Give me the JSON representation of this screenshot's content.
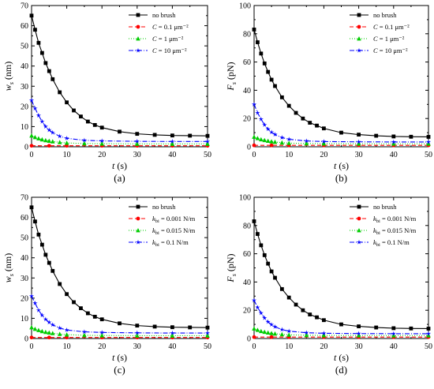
{
  "chart_data": [
    {
      "type": "line",
      "panel_label": "(a)",
      "xlabel": "t (s)",
      "ylabel_main": "w",
      "ylabel_sub": "s",
      "ylabel_unit": " (nm)",
      "xlim": [
        0,
        50
      ],
      "ylim": [
        0,
        70
      ],
      "xticks": [
        0,
        10,
        20,
        30,
        40,
        50
      ],
      "yticks": [
        0,
        10,
        20,
        30,
        40,
        50,
        60,
        70
      ],
      "legend_position": "top-right",
      "series": [
        {
          "name": "no brush",
          "legend_prefix": "",
          "legend_var": "",
          "legend_sub": "",
          "legend_value": "no brush",
          "color": "#000000",
          "dash": "",
          "marker": "square",
          "x": [
            0,
            1,
            2,
            3,
            4,
            5,
            6,
            8,
            10,
            12,
            14,
            16,
            18,
            20,
            25,
            30,
            35,
            40,
            45,
            50
          ],
          "y": [
            65,
            58,
            51.5,
            46.5,
            41.5,
            37.5,
            33.5,
            27,
            22,
            18,
            15,
            12.5,
            10.8,
            9.5,
            7.5,
            6.4,
            5.9,
            5.6,
            5.5,
            5.4
          ]
        },
        {
          "name": "C = 0.1 μm⁻²",
          "legend_prefix": "",
          "legend_var": "C",
          "legend_sub": "",
          "legend_value": " = 0.1 μm⁻²",
          "color": "#ff0000",
          "dash": "5,3",
          "marker": "circle",
          "x": [
            0,
            5,
            10,
            20,
            30,
            40,
            50
          ],
          "y": [
            0.5,
            0.5,
            0.5,
            0.5,
            0.5,
            0.5,
            0.5
          ]
        },
        {
          "name": "C = 1 μm⁻²",
          "legend_prefix": "",
          "legend_var": "C",
          "legend_sub": "",
          "legend_value": " = 1 μm⁻²",
          "color": "#00cc00",
          "dash": "1,2",
          "marker": "triangle",
          "x": [
            0,
            1,
            2,
            3,
            4,
            5,
            6,
            8,
            10,
            15,
            20,
            30,
            40,
            50
          ],
          "y": [
            5.5,
            4.7,
            4.1,
            3.6,
            3.2,
            2.9,
            2.6,
            2.2,
            1.9,
            1.6,
            1.5,
            1.4,
            1.4,
            1.4
          ]
        },
        {
          "name": "C = 10 μm⁻²",
          "legend_prefix": "",
          "legend_var": "C",
          "legend_sub": "",
          "legend_value": " = 10 μm⁻²",
          "color": "#0000ff",
          "dash": "6,2,1,2",
          "marker": "star",
          "x": [
            0,
            1,
            2,
            3,
            4,
            5,
            6,
            8,
            10,
            15,
            20,
            30,
            40,
            50
          ],
          "y": [
            23,
            19,
            15.5,
            12.5,
            10,
            8.3,
            7,
            5.2,
            4.2,
            3.2,
            2.9,
            2.7,
            2.6,
            2.6
          ]
        }
      ]
    },
    {
      "type": "line",
      "panel_label": "(b)",
      "xlabel": "t (s)",
      "ylabel_main": "F",
      "ylabel_sub": "s",
      "ylabel_unit": " (pN)",
      "xlim": [
        0,
        50
      ],
      "ylim": [
        0,
        100
      ],
      "xticks": [
        0,
        10,
        20,
        30,
        40,
        50
      ],
      "yticks": [
        0,
        20,
        40,
        60,
        80,
        100
      ],
      "legend_position": "top-right",
      "series": [
        {
          "name": "no brush",
          "legend_prefix": "",
          "legend_var": "",
          "legend_sub": "",
          "legend_value": "no brush",
          "color": "#000000",
          "dash": "",
          "marker": "square",
          "x": [
            0,
            1,
            2,
            3,
            4,
            5,
            6,
            8,
            10,
            12,
            14,
            16,
            18,
            20,
            25,
            30,
            35,
            40,
            45,
            50
          ],
          "y": [
            83,
            74,
            66,
            59,
            53,
            47.5,
            43,
            35,
            29,
            24,
            20,
            17,
            15,
            13,
            10,
            8.6,
            7.8,
            7.3,
            7.1,
            7
          ]
        },
        {
          "name": "C = 0.1 μm⁻²",
          "legend_prefix": "",
          "legend_var": "C",
          "legend_sub": "",
          "legend_value": " = 0.1 μm⁻²",
          "color": "#ff0000",
          "dash": "5,3",
          "marker": "circle",
          "x": [
            0,
            5,
            10,
            20,
            30,
            40,
            50
          ],
          "y": [
            1,
            1,
            1,
            1,
            1,
            1,
            1
          ]
        },
        {
          "name": "C = 1 μm⁻²",
          "legend_prefix": "",
          "legend_var": "C",
          "legend_sub": "",
          "legend_value": " = 1 μm⁻²",
          "color": "#00cc00",
          "dash": "1,2",
          "marker": "triangle",
          "x": [
            0,
            1,
            2,
            3,
            4,
            5,
            6,
            8,
            10,
            15,
            20,
            30,
            40,
            50
          ],
          "y": [
            7,
            6,
            5.2,
            4.6,
            4.1,
            3.7,
            3.4,
            2.9,
            2.6,
            2.3,
            2.2,
            2.1,
            2.1,
            2.1
          ]
        },
        {
          "name": "C = 10 μm⁻²",
          "legend_prefix": "",
          "legend_var": "C",
          "legend_sub": "",
          "legend_value": " = 10 μm⁻²",
          "color": "#0000ff",
          "dash": "6,2,1,2",
          "marker": "star",
          "x": [
            0,
            1,
            2,
            3,
            4,
            5,
            6,
            8,
            10,
            15,
            20,
            30,
            40,
            50
          ],
          "y": [
            30,
            24,
            19.5,
            15.5,
            12.5,
            10.3,
            8.7,
            6.5,
            5.3,
            4.1,
            3.7,
            3.5,
            3.4,
            3.4
          ]
        }
      ]
    },
    {
      "type": "line",
      "panel_label": "(c)",
      "xlabel": "t (s)",
      "ylabel_main": "w",
      "ylabel_sub": "s",
      "ylabel_unit": " (nm)",
      "xlim": [
        0,
        50
      ],
      "ylim": [
        0,
        70
      ],
      "xticks": [
        0,
        10,
        20,
        30,
        40,
        50
      ],
      "yticks": [
        0,
        10,
        20,
        30,
        40,
        50,
        60,
        70
      ],
      "legend_position": "top-right",
      "series": [
        {
          "name": "no brush",
          "legend_prefix": "",
          "legend_var": "",
          "legend_sub": "",
          "legend_value": "no brush",
          "color": "#000000",
          "dash": "",
          "marker": "square",
          "x": [
            0,
            1,
            2,
            3,
            4,
            5,
            6,
            8,
            10,
            12,
            14,
            16,
            18,
            20,
            25,
            30,
            35,
            40,
            45,
            50
          ],
          "y": [
            65,
            58,
            51.5,
            46.5,
            41.5,
            37.5,
            33.5,
            27,
            22,
            18,
            15,
            12.5,
            10.8,
            9.5,
            7.5,
            6.4,
            5.9,
            5.6,
            5.5,
            5.4
          ]
        },
        {
          "name": "kbi = 0.001 N/m",
          "legend_prefix": "",
          "legend_var": "k",
          "legend_sub": "bi",
          "legend_value": " = 0.001 N/m",
          "color": "#ff0000",
          "dash": "5,3",
          "marker": "circle",
          "x": [
            0,
            5,
            10,
            20,
            30,
            40,
            50
          ],
          "y": [
            0.5,
            0.5,
            0.5,
            0.5,
            0.5,
            0.5,
            0.5
          ]
        },
        {
          "name": "kbi = 0.015 N/m",
          "legend_prefix": "",
          "legend_var": "k",
          "legend_sub": "bi",
          "legend_value": " = 0.015 N/m",
          "color": "#00cc00",
          "dash": "1,2",
          "marker": "triangle",
          "x": [
            0,
            1,
            2,
            3,
            4,
            5,
            6,
            8,
            10,
            15,
            20,
            30,
            40,
            50
          ],
          "y": [
            5.5,
            4.7,
            4.1,
            3.6,
            3.2,
            2.9,
            2.6,
            2.2,
            1.9,
            1.6,
            1.5,
            1.4,
            1.4,
            1.4
          ]
        },
        {
          "name": "kbi = 0.1 N/m",
          "legend_prefix": "",
          "legend_var": "k",
          "legend_sub": "bi",
          "legend_value": " = 0.1 N/m",
          "color": "#0000ff",
          "dash": "6,2,1,2",
          "marker": "star",
          "x": [
            0,
            1,
            2,
            3,
            4,
            5,
            6,
            8,
            10,
            15,
            20,
            30,
            40,
            50
          ],
          "y": [
            21,
            17.5,
            14,
            11.5,
            9.5,
            8,
            6.8,
            5.2,
            4.2,
            3.3,
            3,
            2.8,
            2.7,
            2.7
          ]
        }
      ]
    },
    {
      "type": "line",
      "panel_label": "(d)",
      "xlabel": "t (s)",
      "ylabel_main": "F",
      "ylabel_sub": "s",
      "ylabel_unit": " (pN)",
      "xlim": [
        0,
        50
      ],
      "ylim": [
        0,
        100
      ],
      "xticks": [
        0,
        10,
        20,
        30,
        40,
        50
      ],
      "yticks": [
        0,
        20,
        40,
        60,
        80,
        100
      ],
      "legend_position": "top-right",
      "series": [
        {
          "name": "no brush",
          "legend_prefix": "",
          "legend_var": "",
          "legend_sub": "",
          "legend_value": "no brush",
          "color": "#000000",
          "dash": "",
          "marker": "square",
          "x": [
            0,
            1,
            2,
            3,
            4,
            5,
            6,
            8,
            10,
            12,
            14,
            16,
            18,
            20,
            25,
            30,
            35,
            40,
            45,
            50
          ],
          "y": [
            83,
            74,
            66,
            59,
            53,
            47.5,
            43,
            35,
            29,
            24,
            20,
            17,
            15,
            13,
            10,
            8.6,
            7.8,
            7.3,
            7.1,
            7
          ]
        },
        {
          "name": "kbi = 0.001 N/m",
          "legend_prefix": "",
          "legend_var": "k",
          "legend_sub": "bi",
          "legend_value": " = 0.001 N/m",
          "color": "#ff0000",
          "dash": "5,3",
          "marker": "circle",
          "x": [
            0,
            5,
            10,
            20,
            30,
            40,
            50
          ],
          "y": [
            1,
            1,
            1,
            1,
            1,
            1,
            1
          ]
        },
        {
          "name": "kbi = 0.015 N/m",
          "legend_prefix": "",
          "legend_var": "k",
          "legend_sub": "bi",
          "legend_value": " = 0.015 N/m",
          "color": "#00cc00",
          "dash": "1,2",
          "marker": "triangle",
          "x": [
            0,
            1,
            2,
            3,
            4,
            5,
            6,
            8,
            10,
            15,
            20,
            30,
            40,
            50
          ],
          "y": [
            7,
            6,
            5.2,
            4.6,
            4.1,
            3.7,
            3.4,
            2.9,
            2.6,
            2.3,
            2.2,
            2.1,
            2.1,
            2.1
          ]
        },
        {
          "name": "kbi = 0.1 N/m",
          "legend_prefix": "",
          "legend_var": "k",
          "legend_sub": "bi",
          "legend_value": " = 0.1 N/m",
          "color": "#0000ff",
          "dash": "6,2,1,2",
          "marker": "star",
          "x": [
            0,
            1,
            2,
            3,
            4,
            5,
            6,
            8,
            10,
            15,
            20,
            30,
            40,
            50
          ],
          "y": [
            27,
            22,
            18,
            14.5,
            11.8,
            9.8,
            8.3,
            6.3,
            5.2,
            4.1,
            3.7,
            3.5,
            3.4,
            3.4
          ]
        }
      ]
    }
  ]
}
